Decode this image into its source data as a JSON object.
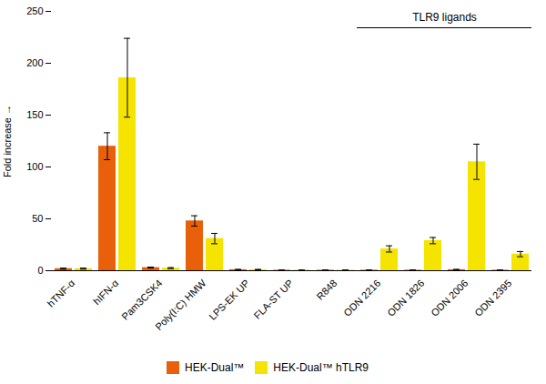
{
  "chart_data": {
    "type": "bar",
    "categories": [
      "hTNF-α",
      "hIFN-α",
      "Pam3CSK4",
      "Poly(I:C) HMW",
      "LPS-EK UP",
      "FLA-ST UP",
      "R848",
      "ODN 2216",
      "ODN 1826",
      "ODN 2006",
      "ODN 2395"
    ],
    "series": [
      {
        "name": "HEK-Dual™",
        "color": "#e8610a",
        "values": [
          2.0,
          120.0,
          3.0,
          48.0,
          1.0,
          0.5,
          0.5,
          0.5,
          0.5,
          1.0,
          0.5
        ],
        "errors": [
          0.5,
          13.0,
          0.5,
          5.0,
          0.3,
          0.2,
          0.2,
          0.2,
          0.2,
          0.3,
          0.2
        ]
      },
      {
        "name": "HEK-Dual™ hTLR9",
        "color": "#f5e400",
        "values": [
          2.0,
          186.0,
          2.5,
          31.0,
          1.0,
          0.5,
          0.5,
          21.0,
          29.0,
          105.0,
          16.0
        ],
        "errors": [
          0.5,
          38.0,
          0.5,
          5.0,
          0.3,
          0.2,
          0.2,
          3.0,
          3.0,
          17.0,
          2.5
        ]
      }
    ],
    "ylabel": "Fold increase",
    "ylim": [
      0,
      250
    ],
    "yticks": [
      0,
      50,
      100,
      150,
      200,
      250
    ],
    "grid": false,
    "legend": "bottom",
    "annotations": [
      {
        "text": "TLR9 ligands",
        "from": "ODN 2216",
        "to": "ODN 2395"
      }
    ]
  }
}
